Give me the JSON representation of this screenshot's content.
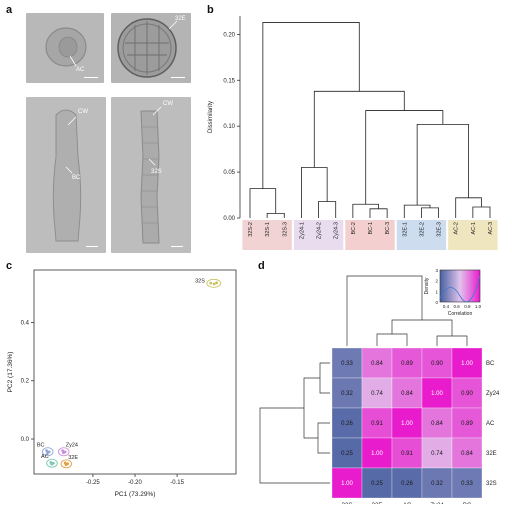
{
  "panels": {
    "a": {
      "letter": "a",
      "labels": {
        "ac": "AC",
        "e32": "32E",
        "cw1": "CW",
        "bc": "BC",
        "cw2": "CW",
        "s32": "32S"
      }
    },
    "b": {
      "letter": "b"
    },
    "c": {
      "letter": "c"
    },
    "d": {
      "letter": "d"
    }
  },
  "chart_data": [
    {
      "panel": "b",
      "type": "dendrogram",
      "ylabel": "Dissimilarity",
      "ylim": [
        0,
        0.22
      ],
      "yticks": [
        "0.00",
        "0.05",
        "0.10",
        "0.15",
        "0.20"
      ],
      "leaves": [
        "32S-2",
        "32S-1",
        "32S-3",
        "Zy24-1",
        "Zy24-2",
        "Zy24-3",
        "BC-2",
        "BC-1",
        "BC-3",
        "32E-1",
        "32E-2",
        "32E-3",
        "AC-2",
        "AC-1",
        "AC-3"
      ],
      "leaf_groups": [
        "32S",
        "32S",
        "32S",
        "Zy24",
        "Zy24",
        "Zy24",
        "BC",
        "BC",
        "BC",
        "32E",
        "32E",
        "32E",
        "AC",
        "AC",
        "AC"
      ],
      "group_colors": {
        "32S": "#f2d3d4",
        "Zy24": "#e8dcee",
        "BC": "#f3cfcf",
        "32E": "#cddcee",
        "AC": "#efe6c0"
      },
      "merges": [
        {
          "a": 1,
          "b": 2,
          "h": 0.005
        },
        {
          "a": 0,
          "b": "m0",
          "h": 0.032
        },
        {
          "a": 4,
          "b": 5,
          "h": 0.018
        },
        {
          "a": 3,
          "b": "m2",
          "h": 0.055
        },
        {
          "a": 7,
          "b": 8,
          "h": 0.01
        },
        {
          "a": 6,
          "b": "m4",
          "h": 0.015
        },
        {
          "a": 10,
          "b": 11,
          "h": 0.011
        },
        {
          "a": 9,
          "b": "m6",
          "h": 0.014
        },
        {
          "a": 13,
          "b": 14,
          "h": 0.012
        },
        {
          "a": 12,
          "b": "m8",
          "h": 0.022
        },
        {
          "a": "m7",
          "b": "m9",
          "h": 0.102
        },
        {
          "a": "m5",
          "b": "m10",
          "h": 0.117
        },
        {
          "a": "m3",
          "b": "m11",
          "h": 0.138
        },
        {
          "a": "m1",
          "b": "m12",
          "h": 0.213
        }
      ]
    },
    {
      "panel": "c",
      "type": "scatter",
      "xlabel": "PC1 (73.29%)",
      "ylabel": "PC2 (17.36%)",
      "xlim": [
        -0.32,
        -0.08
      ],
      "ylim": [
        -0.12,
        0.58
      ],
      "xticks": [
        -0.25,
        -0.2,
        -0.15
      ],
      "xtick_labels": [
        "-0.25",
        "-0.20",
        "-0.15"
      ],
      "yticks": [
        0.0,
        0.2,
        0.4
      ],
      "ytick_labels": [
        "0.0",
        "0.2",
        "0.4"
      ],
      "groups": [
        {
          "label": "32S",
          "color": "#c8c060",
          "points": [
            [
              -0.11,
              0.535
            ],
            [
              -0.106,
              0.532
            ],
            [
              -0.103,
              0.536
            ]
          ],
          "label_side": "left"
        },
        {
          "label": "BC",
          "color": "#8fa8d8",
          "points": [
            [
              -0.305,
              -0.04
            ],
            [
              -0.302,
              -0.044
            ],
            [
              -0.304,
              -0.047
            ]
          ],
          "label_side": "left-up"
        },
        {
          "label": "Zy24",
          "color": "#c890d8",
          "points": [
            [
              -0.286,
              -0.04
            ],
            [
              -0.283,
              -0.044
            ],
            [
              -0.285,
              -0.047
            ]
          ],
          "label_side": "right-up"
        },
        {
          "label": "AC",
          "color": "#7cc8b0",
          "points": [
            [
              -0.3,
              -0.08
            ],
            [
              -0.297,
              -0.083
            ],
            [
              -0.299,
              -0.086
            ]
          ],
          "label_side": "left-up"
        },
        {
          "label": "32E",
          "color": "#e0a040",
          "points": [
            [
              -0.283,
              -0.082
            ],
            [
              -0.28,
              -0.085
            ],
            [
              -0.282,
              -0.088
            ]
          ],
          "label_side": "right-up"
        }
      ]
    },
    {
      "panel": "d",
      "type": "heatmap",
      "rows": [
        "BC",
        "Zy24",
        "AC",
        "32E",
        "32S"
      ],
      "cols": [
        "32S",
        "32E",
        "AC",
        "Zy24",
        "BC"
      ],
      "values": [
        [
          0.33,
          0.84,
          0.89,
          0.9,
          1.0
        ],
        [
          0.32,
          0.74,
          0.84,
          1.0,
          0.9
        ],
        [
          0.26,
          0.91,
          1.0,
          0.84,
          0.89
        ],
        [
          0.25,
          1.0,
          0.91,
          0.74,
          0.84
        ],
        [
          1.0,
          0.25,
          0.26,
          0.32,
          0.33
        ]
      ],
      "legend": {
        "title": "Correlation",
        "ylabel": "Density",
        "xticks": [
          "0.4",
          "0.6",
          "0.8",
          "1.0"
        ],
        "yticks": [
          "0",
          "1",
          "2",
          "3"
        ]
      }
    }
  ]
}
